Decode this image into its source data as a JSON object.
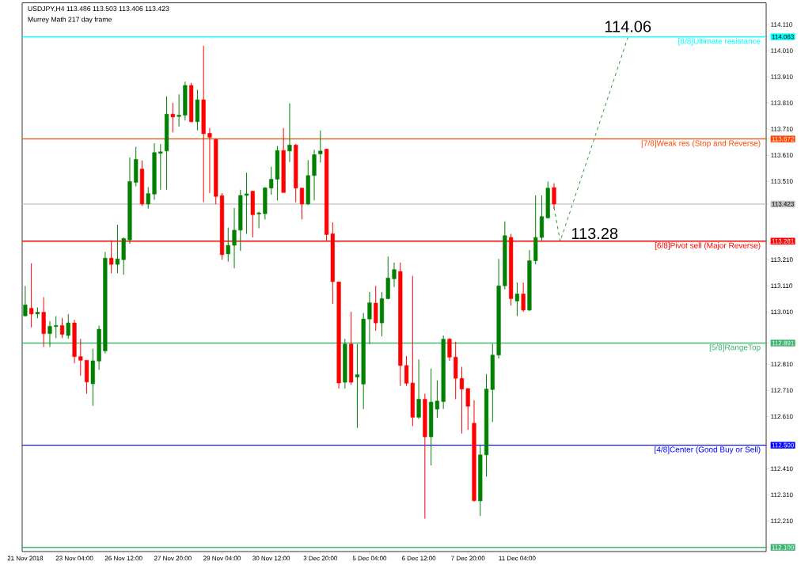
{
  "chart_data": {
    "type": "candlestick",
    "title": "USDJPY,H4  113.486 113.503 113.406 113.423",
    "subtitle": "Murrey Math 217 day frame",
    "categories": [
      "21 Nov 2018",
      null,
      null,
      null,
      null,
      null,
      null,
      null,
      "23 Nov 04:00",
      null,
      null,
      null,
      null,
      null,
      null,
      null,
      "26 Nov 12:00",
      null,
      null,
      null,
      null,
      null,
      null,
      null,
      "27 Nov 20:00",
      null,
      null,
      null,
      null,
      null,
      null,
      null,
      "29 Nov 04:00",
      null,
      null,
      null,
      null,
      null,
      null,
      null,
      "30 Nov 12:00",
      null,
      null,
      null,
      null,
      null,
      null,
      null,
      "3 Dec 20:00",
      null,
      null,
      null,
      null,
      null,
      null,
      null,
      "5 Dec 04:00",
      null,
      null,
      null,
      null,
      null,
      null,
      null,
      "6 Dec 12:00",
      null,
      null,
      null,
      null,
      null,
      null,
      null,
      "7 Dec 20:00",
      null,
      null,
      null,
      null,
      null,
      null,
      null,
      "11 Dec 04:00",
      null,
      null,
      null,
      null,
      null,
      null,
      null,
      null,
      null,
      null,
      null,
      null,
      null,
      null,
      null,
      null,
      null,
      null,
      null,
      null,
      null,
      null,
      null,
      null,
      null,
      null,
      null,
      null,
      null,
      null,
      null,
      null,
      null,
      null,
      null,
      null,
      null,
      null,
      null,
      null
    ],
    "ylim": [
      112.093,
      114.193
    ],
    "yticks": [
      {
        "value": 114.11,
        "label": "114.110"
      },
      {
        "value": 114.063,
        "label": "114.063"
      },
      {
        "value": 114.01,
        "label": "114.010"
      },
      {
        "value": 113.91,
        "label": "113.910"
      },
      {
        "value": 113.81,
        "label": "113.810"
      },
      {
        "value": 113.71,
        "label": "113.710"
      },
      {
        "value": 113.672,
        "label": "113.672"
      },
      {
        "value": 113.61,
        "label": "113.610"
      },
      {
        "value": 113.51,
        "label": "113.510"
      },
      {
        "value": 113.423,
        "label": "113.423"
      },
      {
        "value": 113.281,
        "label": "113.281"
      },
      {
        "value": 113.21,
        "label": "113.210"
      },
      {
        "value": 113.11,
        "label": "113.110"
      },
      {
        "value": 113.01,
        "label": "113.010"
      },
      {
        "value": 112.891,
        "label": "112.891"
      },
      {
        "value": 112.81,
        "label": "112.810"
      },
      {
        "value": 112.71,
        "label": "112.710"
      },
      {
        "value": 112.61,
        "label": "112.610"
      },
      {
        "value": 112.5,
        "label": "112.500"
      },
      {
        "value": 112.41,
        "label": "112.410"
      },
      {
        "value": 112.31,
        "label": "112.310"
      },
      {
        "value": 112.21,
        "label": "112.210"
      },
      {
        "value": 112.109,
        "label": "112.109"
      }
    ],
    "ohlc": [
      [
        112.995,
        113.11,
        112.993,
        113.037
      ],
      [
        113.024,
        113.196,
        112.951,
        113.002
      ],
      [
        113.002,
        113.027,
        112.986,
        113.009
      ],
      [
        113.009,
        113.067,
        112.876,
        112.927
      ],
      [
        112.927,
        112.975,
        112.876,
        112.955
      ],
      [
        112.954,
        112.994,
        112.91,
        112.958
      ],
      [
        112.958,
        112.987,
        112.91,
        112.924
      ],
      [
        112.92,
        113.002,
        112.907,
        112.968
      ],
      [
        112.968,
        112.98,
        112.814,
        112.839
      ],
      [
        112.839,
        112.907,
        112.766,
        112.825
      ],
      [
        112.825,
        112.825,
        112.697,
        112.742
      ],
      [
        112.735,
        112.869,
        112.651,
        112.823
      ],
      [
        112.822,
        112.958,
        112.789,
        112.944
      ],
      [
        112.861,
        113.24,
        112.852,
        113.216
      ],
      [
        113.216,
        113.284,
        113.158,
        113.192
      ],
      [
        113.192,
        113.344,
        113.158,
        113.213
      ],
      [
        113.21,
        113.295,
        113.152,
        113.291
      ],
      [
        113.286,
        113.601,
        113.271,
        113.509
      ],
      [
        113.506,
        113.642,
        113.491,
        113.594
      ],
      [
        113.557,
        113.59,
        113.416,
        113.423
      ],
      [
        113.423,
        113.488,
        113.405,
        113.463
      ],
      [
        113.461,
        113.656,
        113.439,
        113.62
      ],
      [
        113.617,
        113.653,
        113.478,
        113.623
      ],
      [
        113.626,
        113.835,
        113.478,
        113.767
      ],
      [
        113.767,
        113.81,
        113.697,
        113.756
      ],
      [
        113.758,
        113.843,
        113.719,
        113.763
      ],
      [
        113.763,
        113.891,
        113.743,
        113.877
      ],
      [
        113.877,
        113.887,
        113.736,
        113.738
      ],
      [
        113.738,
        113.86,
        113.705,
        113.822
      ],
      [
        113.822,
        114.029,
        113.43,
        113.692
      ],
      [
        113.694,
        113.714,
        113.465,
        113.678
      ],
      [
        113.67,
        113.675,
        113.422,
        113.452
      ],
      [
        113.455,
        113.465,
        113.21,
        113.229
      ],
      [
        113.232,
        113.333,
        113.203,
        113.265
      ],
      [
        113.265,
        113.408,
        113.177,
        113.323
      ],
      [
        113.323,
        113.478,
        113.244,
        113.456
      ],
      [
        113.456,
        113.543,
        113.309,
        113.462
      ],
      [
        113.472,
        113.474,
        113.295,
        113.382
      ],
      [
        113.385,
        113.394,
        113.33,
        113.389
      ],
      [
        113.386,
        113.488,
        113.364,
        113.485
      ],
      [
        113.484,
        113.566,
        113.459,
        113.518
      ],
      [
        113.518,
        113.645,
        113.436,
        113.628
      ],
      [
        113.628,
        113.714,
        113.467,
        113.467
      ],
      [
        113.626,
        113.809,
        113.584,
        113.649
      ],
      [
        113.649,
        113.653,
        113.429,
        113.484
      ],
      [
        113.484,
        113.484,
        113.364,
        113.423
      ],
      [
        113.423,
        113.591,
        113.419,
        113.532
      ],
      [
        113.532,
        113.631,
        113.437,
        113.612
      ],
      [
        113.615,
        113.704,
        113.582,
        113.626
      ],
      [
        113.633,
        113.635,
        113.284,
        113.306
      ],
      [
        113.309,
        113.353,
        113.041,
        113.126
      ],
      [
        113.125,
        113.125,
        112.717,
        112.738
      ],
      [
        112.741,
        112.907,
        112.717,
        112.887
      ],
      [
        112.887,
        113.011,
        112.731,
        112.741
      ],
      [
        112.761,
        112.887,
        112.566,
        112.77
      ],
      [
        112.734,
        113.006,
        112.638,
        112.983
      ],
      [
        112.983,
        113.086,
        112.887,
        113.045
      ],
      [
        113.044,
        113.11,
        112.938,
        112.968
      ],
      [
        112.968,
        113.086,
        112.917,
        113.061
      ],
      [
        113.061,
        113.222,
        113.058,
        113.14
      ],
      [
        113.137,
        113.199,
        113.105,
        113.172
      ],
      [
        113.165,
        113.199,
        112.727,
        112.805
      ],
      [
        112.805,
        112.841,
        112.727,
        112.737
      ],
      [
        112.738,
        113.148,
        112.573,
        112.607
      ],
      [
        112.607,
        112.828,
        112.6,
        112.676
      ],
      [
        112.676,
        112.697,
        112.219,
        112.532
      ],
      [
        112.532,
        112.793,
        112.422,
        112.665
      ],
      [
        112.638,
        112.748,
        112.605,
        112.669
      ],
      [
        112.667,
        112.92,
        112.639,
        112.906
      ],
      [
        112.906,
        112.91,
        112.823,
        112.837
      ],
      [
        112.837,
        112.896,
        112.676,
        112.756
      ],
      [
        112.756,
        112.8,
        112.545,
        112.715
      ],
      [
        112.717,
        112.717,
        112.559,
        112.649
      ],
      [
        112.584,
        112.672,
        112.284,
        112.288
      ],
      [
        112.287,
        112.501,
        112.229,
        112.463
      ],
      [
        112.463,
        112.772,
        112.38,
        112.715
      ],
      [
        112.713,
        112.887,
        112.589,
        112.845
      ],
      [
        112.845,
        113.213,
        112.832,
        113.11
      ],
      [
        113.11,
        113.357,
        113.096,
        113.302
      ],
      [
        113.295,
        113.309,
        113.034,
        113.061
      ],
      [
        113.052,
        113.123,
        112.995,
        113.079
      ],
      [
        113.079,
        113.123,
        113.011,
        113.017
      ],
      [
        113.017,
        113.247,
        113.014,
        113.206
      ],
      [
        113.206,
        113.456,
        113.192,
        113.295
      ],
      [
        113.295,
        113.456,
        113.284,
        113.375
      ],
      [
        113.37,
        113.509,
        113.368,
        113.484
      ],
      [
        113.486,
        113.503,
        113.406,
        113.423
      ],
      null,
      null,
      null,
      null,
      null,
      null,
      null,
      null,
      null,
      null,
      null,
      null,
      null,
      null,
      null,
      null,
      null,
      null,
      null,
      null,
      null,
      null,
      null,
      null,
      null,
      null,
      null,
      null,
      null,
      null,
      null,
      null,
      null,
      null
    ],
    "colors": [
      "#008000",
      "#ff0000",
      "#008000",
      "#ff0000",
      "#008000",
      "#008000",
      "#ff0000",
      "#008000",
      "#ff0000",
      "#ff0000",
      "#ff0000",
      "#008000",
      "#008000",
      "#008000",
      "#ff0000",
      "#008000",
      "#008000",
      "#008000",
      "#008000",
      "#ff0000",
      "#008000",
      "#008000",
      "#008000",
      "#008000",
      "#ff0000",
      "#008000",
      "#008000",
      "#ff0000",
      "#008000",
      "#ff0000",
      "#ff0000",
      "#ff0000",
      "#ff0000",
      "#008000",
      "#008000",
      "#008000",
      "#008000",
      "#ff0000",
      "#008000",
      "#008000",
      "#008000",
      "#008000",
      "#ff0000",
      "#008000",
      "#ff0000",
      "#ff0000",
      "#008000",
      "#008000",
      "#008000",
      "#ff0000",
      "#ff0000",
      "#ff0000",
      "#008000",
      "#ff0000",
      "#008000",
      "#008000",
      "#008000",
      "#ff0000",
      "#008000",
      "#008000",
      "#008000",
      "#ff0000",
      "#ff0000",
      "#ff0000",
      "#008000",
      "#ff0000",
      "#008000",
      "#008000",
      "#008000",
      "#ff0000",
      "#ff0000",
      "#ff0000",
      "#ff0000",
      "#ff0000",
      "#008000",
      "#008000",
      "#008000",
      "#008000",
      "#008000",
      "#ff0000",
      "#008000",
      "#ff0000",
      "#008000",
      "#008000",
      "#008000",
      "#008000",
      "#ff0000",
      null,
      null,
      null,
      null,
      null,
      null,
      null,
      null,
      null,
      null,
      null,
      null,
      null,
      null,
      null,
      null,
      null,
      null,
      null,
      null,
      null,
      null,
      null,
      null,
      null,
      null,
      null,
      null,
      null,
      null,
      null,
      null,
      null,
      null
    ],
    "series": [
      {
        "type": "line",
        "color": "#008000",
        "line_style": "dashed",
        "values": [
          null,
          null,
          null,
          null,
          null,
          null,
          null,
          null,
          null,
          null,
          null,
          null,
          null,
          null,
          null,
          null,
          null,
          null,
          null,
          null,
          null,
          null,
          null,
          null,
          null,
          null,
          null,
          null,
          null,
          null,
          null,
          null,
          null,
          null,
          null,
          null,
          null,
          null,
          null,
          null,
          null,
          null,
          null,
          null,
          null,
          null,
          null,
          null,
          null,
          null,
          null,
          null,
          null,
          null,
          null,
          null,
          null,
          null,
          null,
          null,
          null,
          null,
          null,
          null,
          null,
          null,
          null,
          null,
          null,
          null,
          null,
          null,
          null,
          null,
          null,
          null,
          null,
          null,
          null,
          null,
          null,
          null,
          null,
          null,
          null,
          null,
          113.41,
          113.28,
          null,
          null,
          null,
          null,
          null,
          null,
          null,
          null,
          null,
          null,
          114.06,
          null,
          null,
          null,
          null,
          null,
          null,
          null,
          null,
          null,
          null,
          null,
          null,
          null,
          null,
          null,
          null,
          null,
          null,
          null,
          null,
          null,
          null
        ]
      }
    ],
    "ref_lines": [
      {
        "axis": "y",
        "value": 114.063,
        "label": "[8/8]Ultimate resistance",
        "color": "#00ffff"
      },
      {
        "axis": "y",
        "value": 113.672,
        "label": "[7/8]Weak res (Stop and Reverse)",
        "color": "#ff4500"
      },
      {
        "axis": "y",
        "value": 113.423,
        "color": "#c0c0c0"
      },
      {
        "axis": "y",
        "value": 113.281,
        "label": "[6/8]Pivot sell (Major Reverse)",
        "color": "#ff0000"
      },
      {
        "axis": "y",
        "value": 112.891,
        "label": "[5/8]RangeTop",
        "color": "#3cb371"
      },
      {
        "axis": "y",
        "value": 112.5,
        "label": "[4/8]Center (Good Buy or Sell)",
        "color": "#0000ff"
      },
      {
        "axis": "y",
        "value": 112.109,
        "color": "#3cb371"
      }
    ],
    "annotations": [
      {
        "text": "114.06",
        "y": 114.06
      },
      {
        "text": "113.28",
        "y": 113.28
      }
    ]
  }
}
